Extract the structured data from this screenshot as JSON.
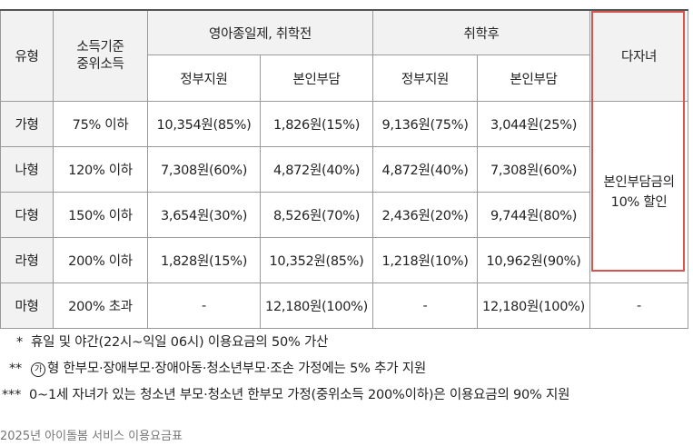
{
  "table": {
    "header": {
      "type": "유형",
      "income_line1": "소득기준",
      "income_line2": "중위소득",
      "before_school": "영아종일제, 취학전",
      "after_school": "취학후",
      "multi_child": "다자녀",
      "gov_support": "정부지원",
      "self_pay": "본인부담"
    },
    "rows": [
      {
        "type": "가형",
        "income": "75% 이하",
        "pre_gov": "10,354원(85%)",
        "pre_self": "1,826원(15%)",
        "post_gov": "9,136원(75%)",
        "post_self": "3,044원(25%)"
      },
      {
        "type": "나형",
        "income": "120% 이하",
        "pre_gov": "7,308원(60%)",
        "pre_self": "4,872원(40%)",
        "post_gov": "4,872원(40%)",
        "post_self": "7,308원(60%)"
      },
      {
        "type": "다형",
        "income": "150% 이하",
        "pre_gov": "3,654원(30%)",
        "pre_self": "8,526원(70%)",
        "post_gov": "2,436원(20%)",
        "post_self": "9,744원(80%)"
      },
      {
        "type": "라형",
        "income": "200% 이하",
        "pre_gov": "1,828원(15%)",
        "pre_self": "10,352원(85%)",
        "post_gov": "1,218원(10%)",
        "post_self": "10,962원(90%)"
      },
      {
        "type": "마형",
        "income": "200% 초과",
        "pre_gov": "-",
        "pre_self": "12,180원(100%)",
        "post_gov": "-",
        "post_self": "12,180원(100%)",
        "multi": "-"
      }
    ],
    "multi_child_discount_line1": "본인부담금의",
    "multi_child_discount_line2": "10% 할인"
  },
  "notes": [
    {
      "mark": "*",
      "text": "휴일 및 야간(22시~익일 06시) 이용요금의 50% 가산"
    },
    {
      "mark": "**",
      "circled": "가",
      "text": "형 한부모·장애부모·장애아동·청소년부모·조손 가정에는 5% 추가 지원"
    },
    {
      "mark": "***",
      "text": "0~1세 자녀가 있는 청소년 부모·청소년 한부모 가정(중위소득 200%이하)은 이용요금의 90% 지원"
    }
  ],
  "caption": "2025년 아이돌봄 서비스 이용요금표",
  "colors": {
    "header_bg": "#f2f2f2",
    "border": "#9a9a9a",
    "highlight_border": "#d9534f"
  }
}
